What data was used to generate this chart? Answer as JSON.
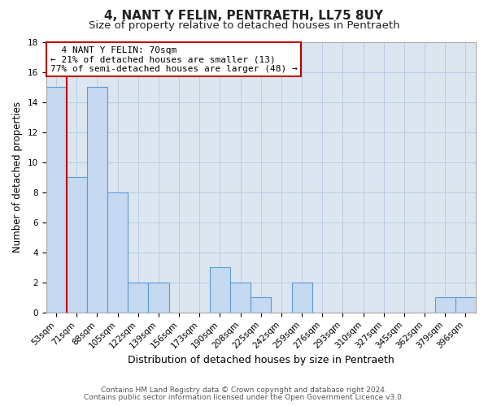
{
  "title": "4, NANT Y FELIN, PENTRAETH, LL75 8UY",
  "subtitle": "Size of property relative to detached houses in Pentraeth",
  "xlabel": "Distribution of detached houses by size in Pentraeth",
  "ylabel": "Number of detached properties",
  "footer_line1": "Contains HM Land Registry data © Crown copyright and database right 2024.",
  "footer_line2": "Contains public sector information licensed under the Open Government Licence v3.0.",
  "bin_labels": [
    "53sqm",
    "71sqm",
    "88sqm",
    "105sqm",
    "122sqm",
    "139sqm",
    "156sqm",
    "173sqm",
    "190sqm",
    "208sqm",
    "225sqm",
    "242sqm",
    "259sqm",
    "276sqm",
    "293sqm",
    "310sqm",
    "327sqm",
    "345sqm",
    "362sqm",
    "379sqm",
    "396sqm"
  ],
  "bar_values": [
    15,
    9,
    15,
    8,
    2,
    2,
    0,
    0,
    3,
    2,
    1,
    0,
    2,
    0,
    0,
    0,
    0,
    0,
    0,
    1,
    1
  ],
  "bar_color": "#c5d9f0",
  "bar_edge_color": "#5b9bd5",
  "highlight_line_color": "#c00000",
  "annotation_title": "4 NANT Y FELIN: 70sqm",
  "annotation_line1": "← 21% of detached houses are smaller (13)",
  "annotation_line2": "77% of semi-detached houses are larger (48) →",
  "annotation_box_color": "#ffffff",
  "annotation_box_edge": "#c00000",
  "ylim": [
    0,
    18
  ],
  "yticks": [
    0,
    2,
    4,
    6,
    8,
    10,
    12,
    14,
    16,
    18
  ],
  "background_color": "#ffffff",
  "plot_bg_color": "#dce6f0",
  "grid_color": "#b8cce4",
  "title_fontsize": 11,
  "subtitle_fontsize": 9.5,
  "xlabel_fontsize": 9,
  "ylabel_fontsize": 8.5,
  "tick_fontsize": 7.5,
  "annotation_fontsize": 8,
  "footer_fontsize": 6.5
}
